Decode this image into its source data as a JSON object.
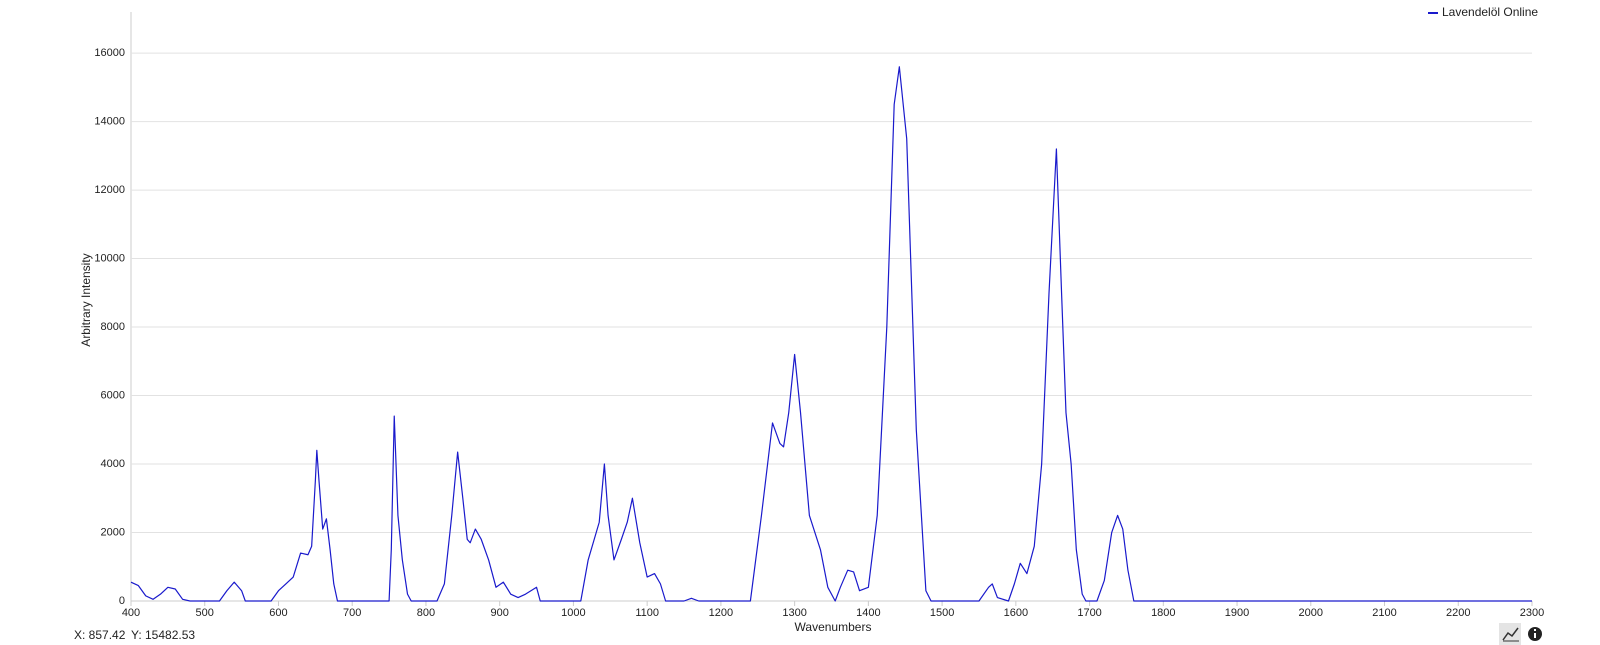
{
  "chart_data": {
    "type": "line",
    "x_label": "Wavenumbers",
    "y_label": "Arbitrary Intensity",
    "legend": "top-right",
    "grid": true,
    "xlim": [
      400,
      2300
    ],
    "xticks": [
      400,
      500,
      600,
      700,
      800,
      900,
      1000,
      1100,
      1200,
      1300,
      1400,
      1500,
      1600,
      1700,
      1800,
      1900,
      2000,
      2100,
      2200,
      2300
    ],
    "ylim": [
      0,
      17200
    ],
    "yticks": [
      0,
      2000,
      4000,
      6000,
      8000,
      10000,
      12000,
      14000,
      16000
    ],
    "x": [
      400,
      410,
      420,
      430,
      440,
      450,
      460,
      470,
      480,
      520,
      530,
      540,
      550,
      555,
      590,
      600,
      610,
      620,
      630,
      640,
      645,
      650,
      652,
      655,
      660,
      665,
      670,
      675,
      680,
      750,
      753,
      757,
      762,
      768,
      775,
      780,
      815,
      825,
      835,
      843,
      850,
      856,
      860,
      867,
      875,
      885,
      895,
      905,
      915,
      925,
      935,
      950,
      955,
      1010,
      1020,
      1035,
      1042,
      1047,
      1055,
      1065,
      1073,
      1080,
      1090,
      1100,
      1110,
      1118,
      1125,
      1150,
      1160,
      1170,
      1240,
      1255,
      1270,
      1280,
      1285,
      1292,
      1300,
      1308,
      1320,
      1335,
      1345,
      1355,
      1362,
      1372,
      1380,
      1388,
      1400,
      1412,
      1425,
      1435,
      1442,
      1452,
      1465,
      1478,
      1485,
      1550,
      1563,
      1568,
      1575,
      1590,
      1598,
      1606,
      1615,
      1625,
      1635,
      1645,
      1655,
      1662,
      1668,
      1675,
      1682,
      1690,
      1695,
      1710,
      1720,
      1730,
      1738,
      1745,
      1752,
      1760,
      2300
    ],
    "series": [
      {
        "name": "Lavendelöl Online",
        "color": "#1a1acc",
        "values": [
          550,
          450,
          150,
          50,
          200,
          400,
          350,
          50,
          0,
          0,
          300,
          550,
          300,
          0,
          0,
          300,
          500,
          700,
          1400,
          1350,
          1600,
          3500,
          4400,
          3500,
          2100,
          2400,
          1500,
          500,
          0,
          0,
          1500,
          5400,
          2500,
          1200,
          200,
          0,
          0,
          500,
          2500,
          4350,
          3000,
          1800,
          1700,
          2100,
          1800,
          1200,
          400,
          550,
          200,
          100,
          200,
          400,
          0,
          0,
          1200,
          2300,
          4000,
          2500,
          1200,
          1800,
          2300,
          3000,
          1700,
          700,
          800,
          500,
          0,
          0,
          80,
          0,
          0,
          2500,
          5200,
          4600,
          4500,
          5500,
          7200,
          5500,
          2500,
          1500,
          400,
          0,
          400,
          900,
          850,
          300,
          400,
          2500,
          8000,
          14500,
          15600,
          13500,
          5000,
          300,
          0,
          0,
          400,
          500,
          100,
          0,
          500,
          1100,
          800,
          1600,
          4000,
          9000,
          13200,
          9000,
          5500,
          4000,
          1500,
          200,
          0,
          0,
          600,
          2000,
          2500,
          2100,
          900,
          0,
          0
        ]
      }
    ],
    "cursor_readout": {
      "x": "X: 857.42",
      "y": "Y: 15482.53"
    }
  }
}
